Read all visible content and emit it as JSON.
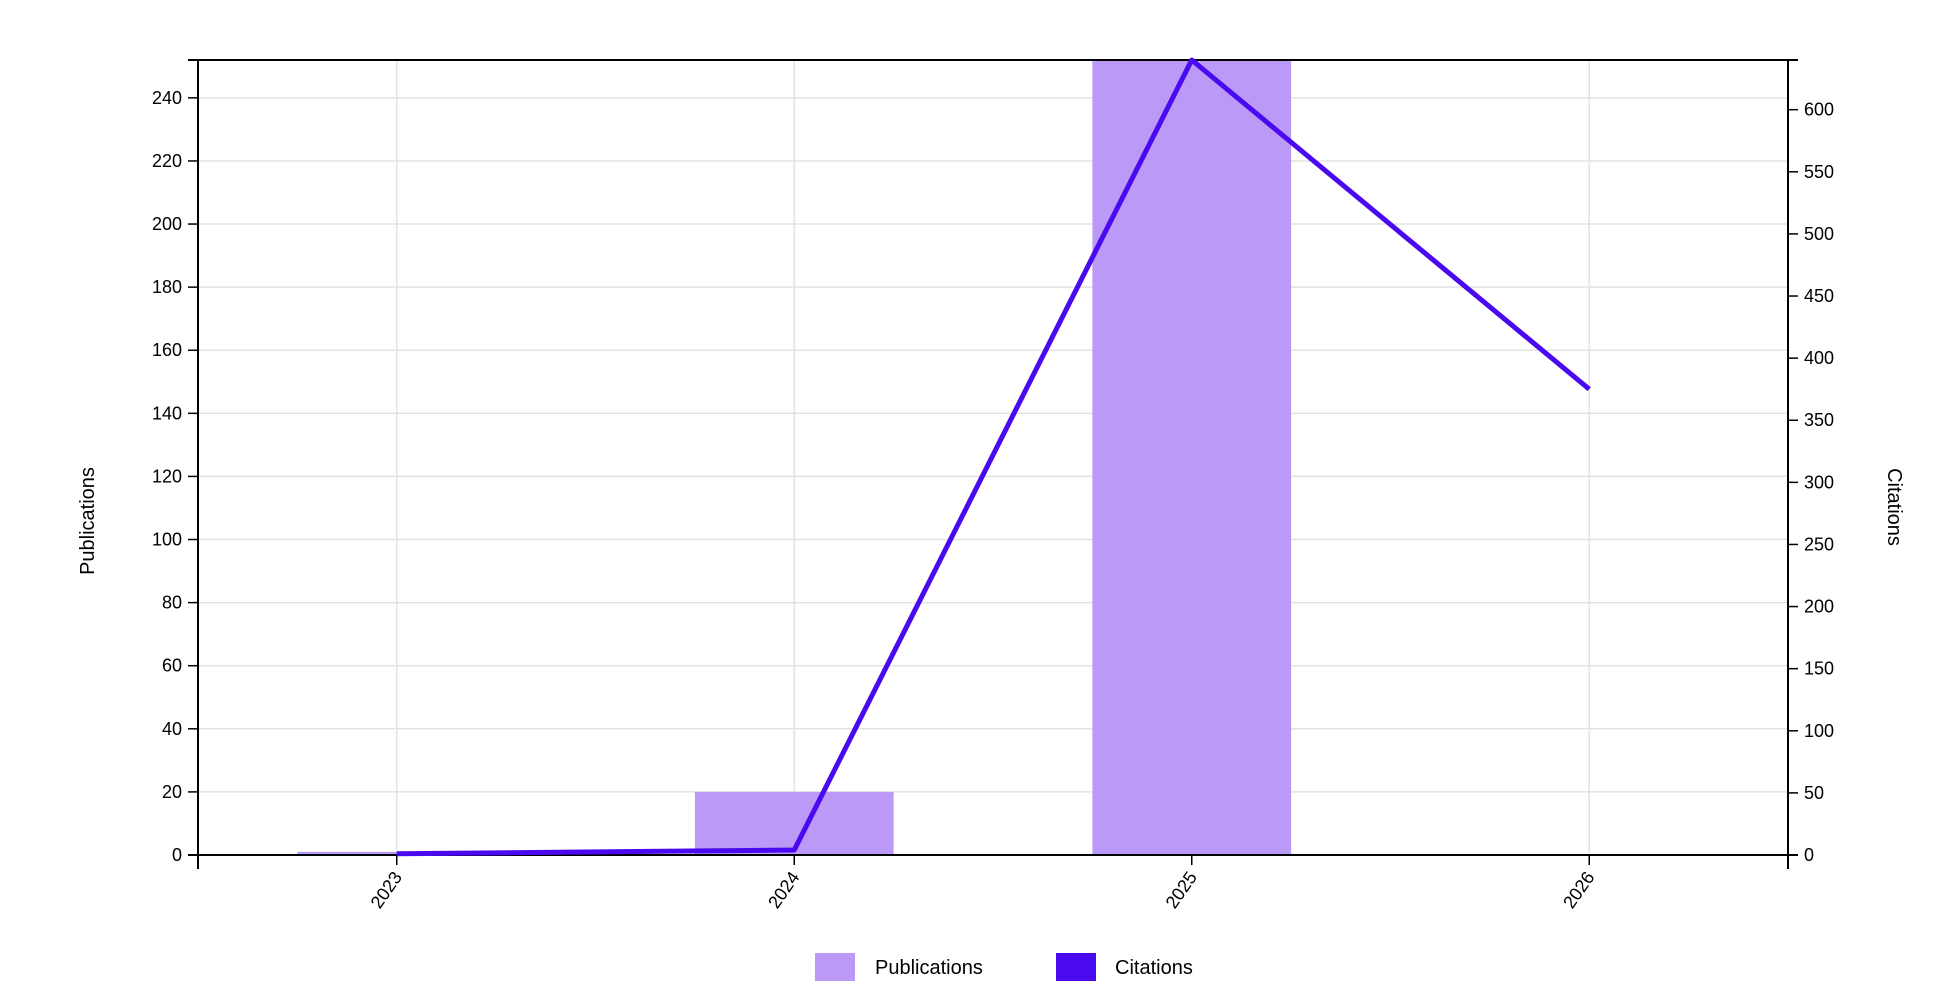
{
  "chart_data": {
    "type": "bar+line",
    "categories": [
      "2023",
      "2024",
      "2025",
      "2026"
    ],
    "series": [
      {
        "name": "Publications",
        "type": "bar",
        "axis": "left",
        "color": "#bb9af7",
        "values": [
          1,
          20,
          252,
          0
        ]
      },
      {
        "name": "Citations",
        "type": "line",
        "axis": "right",
        "color": "#4a0af0",
        "values": [
          1,
          4,
          640,
          375
        ]
      }
    ],
    "title": "",
    "xlabel": "",
    "ylabel_left": "Publications",
    "ylabel_right": "Citations",
    "ylim_left": [
      0,
      252
    ],
    "ylim_right": [
      0,
      640
    ],
    "yticks_left": [
      0,
      20,
      40,
      60,
      80,
      100,
      120,
      140,
      160,
      180,
      200,
      220,
      240
    ],
    "yticks_right": [
      0,
      50,
      100,
      150,
      200,
      250,
      300,
      350,
      400,
      450,
      500,
      550,
      600
    ],
    "grid": true,
    "legend_position": "bottom-center"
  }
}
